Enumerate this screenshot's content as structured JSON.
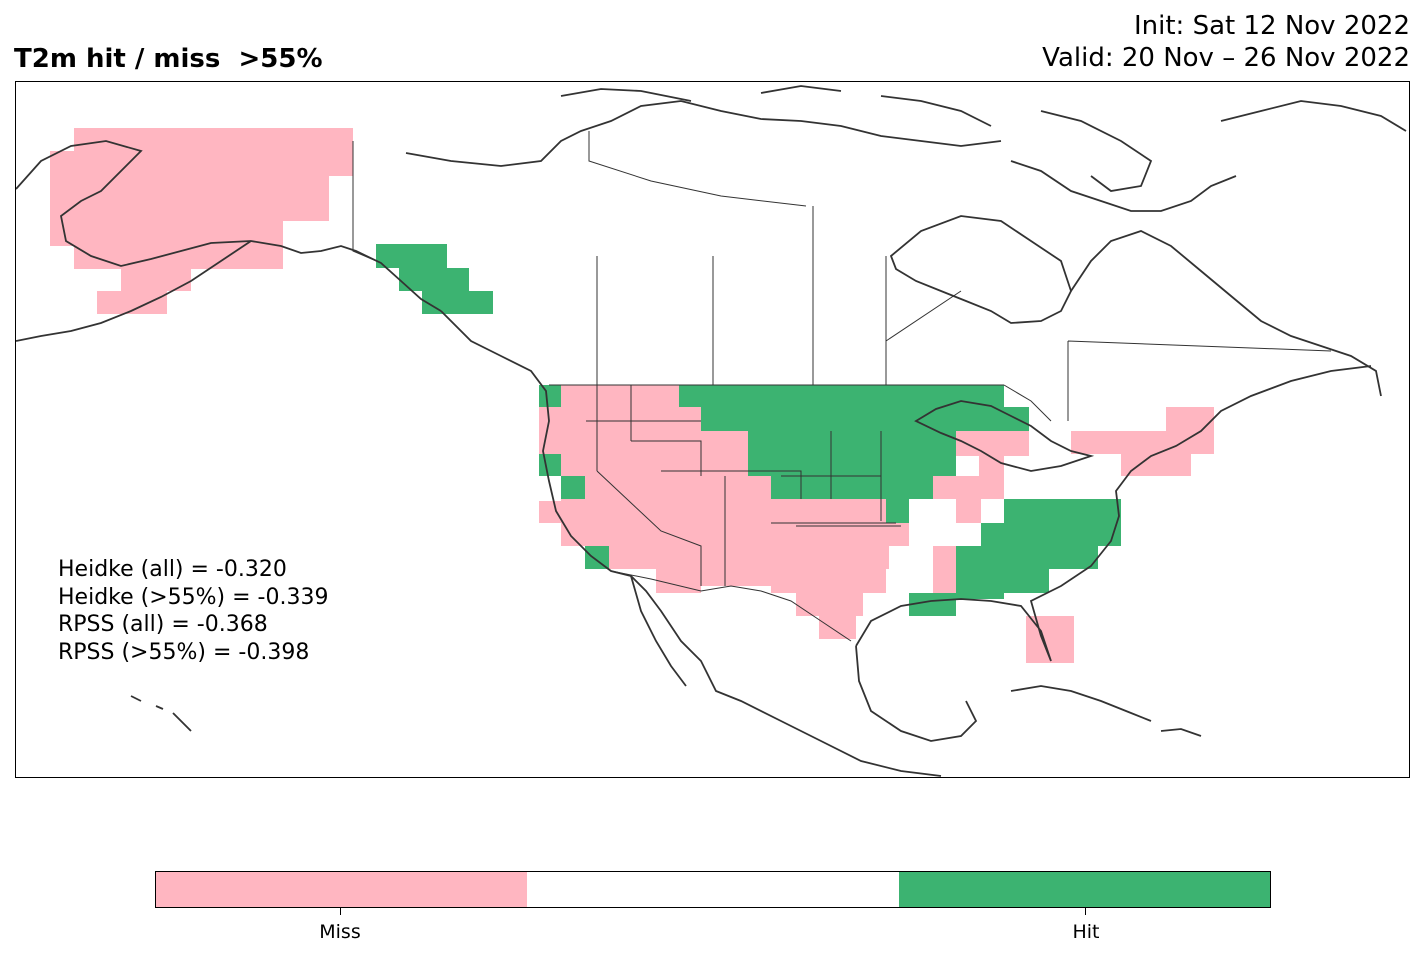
{
  "header": {
    "title": "T2m hit / miss  >55%",
    "init": "Init: Sat 12 Nov 2022",
    "valid": "Valid: 20 Nov – 26 Nov 2022"
  },
  "scores": {
    "heidke_all": "Heidke (all) = -0.320",
    "heidke_55": "Heidke (>55%) = -0.339",
    "rpss_all": "RPSS (all) = -0.368",
    "rpss_55": "RPSS (>55%) = -0.398"
  },
  "legend": {
    "miss_label": "Miss",
    "hit_label": "Hit",
    "colors": {
      "miss": "#ffb6c1",
      "neutral": "#ffffff",
      "hit": "#3cb371"
    }
  },
  "map_data": {
    "miss_regions": [
      "Alaska",
      "Pacific Northwest",
      "California",
      "Great Basin",
      "Southwest",
      "Texas",
      "Ohio Valley",
      "Northeast",
      "Florida peninsula"
    ],
    "hit_regions": [
      "Alaska panhandle",
      "Northern Plains",
      "Upper Midwest",
      "Southeast",
      "Mid-Atlantic"
    ]
  }
}
